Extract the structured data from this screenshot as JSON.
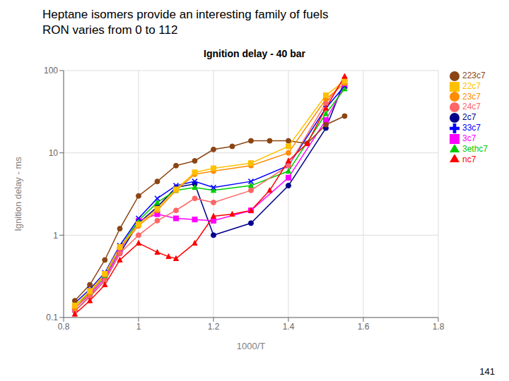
{
  "chart_data": {
    "type": "line",
    "title": "Heptane isomers provide an interesting family of fuels\nRON varies from 0 to 112",
    "subtitle": "Ignition delay - 40 bar",
    "x_label": "1000/T",
    "y_label": "Ignition delay - ms",
    "annotations": [
      "141"
    ],
    "xlim": [
      0.8,
      1.8
    ],
    "xticks": [
      0.8,
      1,
      1.2,
      1.4,
      1.6,
      1.8
    ],
    "ylim": [
      0.1,
      100
    ],
    "yticks": [
      0.1,
      1,
      10,
      100
    ],
    "log": "y",
    "grid": true,
    "legend": "right",
    "series": [
      {
        "name": "2c7",
        "color": "#00008B",
        "marker": "circle",
        "line_style": "solid",
        "x": [
          0.83,
          0.87,
          0.91,
          0.95,
          1.0,
          1.05,
          1.1,
          1.15,
          1.2,
          1.3,
          1.4,
          1.5,
          1.55
        ],
        "values": [
          0.12,
          0.18,
          0.28,
          0.6,
          1.4,
          2.2,
          3.8,
          4.2,
          1.0,
          1.4,
          4.0,
          20,
          75
        ]
      },
      {
        "name": "3c7",
        "color": "#FF00FF",
        "marker": "square",
        "line_style": "solid",
        "x": [
          0.83,
          0.87,
          0.91,
          0.95,
          1.0,
          1.05,
          1.1,
          1.15,
          1.2,
          1.3,
          1.4,
          1.5,
          1.55
        ],
        "values": [
          0.13,
          0.19,
          0.3,
          0.65,
          1.5,
          1.8,
          1.6,
          1.55,
          1.5,
          2.0,
          5.0,
          25,
          65
        ]
      },
      {
        "name": "3ethc7",
        "color": "#00CC00",
        "marker": "triangle",
        "line_style": "solid",
        "x": [
          0.83,
          0.87,
          0.91,
          0.95,
          1.0,
          1.05,
          1.1,
          1.15,
          1.2,
          1.3,
          1.4,
          1.5,
          1.55
        ],
        "values": [
          0.14,
          0.2,
          0.32,
          0.7,
          1.5,
          2.5,
          3.5,
          3.8,
          3.5,
          4.0,
          6.0,
          30,
          60
        ]
      },
      {
        "name": "33c7",
        "color": "#0000FF",
        "marker": "cross",
        "line_style": "solid",
        "x": [
          0.83,
          0.87,
          0.91,
          0.95,
          1.0,
          1.05,
          1.1,
          1.15,
          1.2,
          1.3,
          1.4,
          1.5,
          1.55
        ],
        "values": [
          0.15,
          0.22,
          0.35,
          0.75,
          1.6,
          2.8,
          4.0,
          4.5,
          3.8,
          4.5,
          7.0,
          35,
          65
        ]
      },
      {
        "name": "24c7",
        "color": "#FF6666",
        "marker": "circle",
        "line_style": "solid",
        "x": [
          0.83,
          0.87,
          0.91,
          0.95,
          1.0,
          1.05,
          1.1,
          1.15,
          1.2,
          1.3,
          1.4,
          1.5,
          1.55
        ],
        "values": [
          0.12,
          0.18,
          0.28,
          0.6,
          1.0,
          1.5,
          2.0,
          2.8,
          2.5,
          3.5,
          7.0,
          40,
          80
        ]
      },
      {
        "name": "223c7",
        "color": "#8B4513",
        "marker": "circle",
        "line_style": "solid",
        "x": [
          0.83,
          0.87,
          0.91,
          0.95,
          1.0,
          1.05,
          1.1,
          1.15,
          1.2,
          1.25,
          1.3,
          1.35,
          1.4,
          1.45,
          1.5,
          1.55
        ],
        "values": [
          0.16,
          0.25,
          0.5,
          1.2,
          3.0,
          4.5,
          7.0,
          8.0,
          11,
          12,
          14,
          14,
          14,
          13,
          22,
          28
        ]
      },
      {
        "name": "23c7",
        "color": "#FF8C00",
        "marker": "circle",
        "line_style": "solid",
        "x": [
          0.83,
          0.87,
          0.91,
          0.95,
          1.0,
          1.05,
          1.1,
          1.15,
          1.2,
          1.3,
          1.4,
          1.5,
          1.55
        ],
        "values": [
          0.13,
          0.2,
          0.33,
          0.7,
          1.3,
          2.0,
          3.5,
          5.5,
          6.0,
          7.0,
          10,
          45,
          70
        ]
      },
      {
        "name": "22c7",
        "color": "#FFC000",
        "marker": "square",
        "line_style": "solid",
        "x": [
          0.83,
          0.87,
          0.91,
          0.95,
          1.0,
          1.05,
          1.1,
          1.15,
          1.2,
          1.3,
          1.4,
          1.5,
          1.55
        ],
        "values": [
          0.14,
          0.21,
          0.34,
          0.72,
          1.35,
          2.1,
          3.6,
          5.8,
          6.5,
          7.5,
          12,
          50,
          75
        ]
      },
      {
        "name": "nc7",
        "color": "#FF0000",
        "marker": "triangle",
        "line_style": "solid",
        "x": [
          0.83,
          0.87,
          0.91,
          0.95,
          1.0,
          1.05,
          1.08,
          1.1,
          1.15,
          1.2,
          1.25,
          1.3,
          1.35,
          1.4,
          1.45,
          1.5,
          1.55
        ],
        "values": [
          0.11,
          0.16,
          0.25,
          0.5,
          0.8,
          0.62,
          0.55,
          0.52,
          0.8,
          1.7,
          1.8,
          2.0,
          3.5,
          8.0,
          13,
          35,
          85
        ]
      }
    ]
  }
}
